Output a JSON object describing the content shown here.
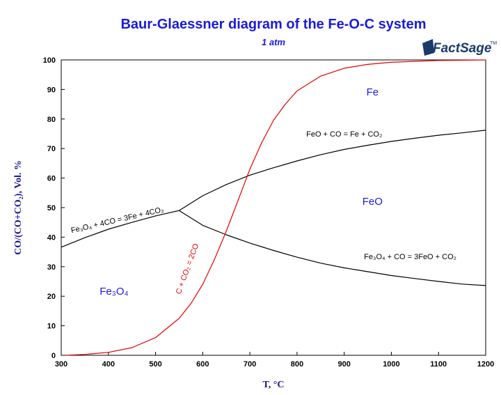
{
  "chart_data": {
    "type": "line",
    "title": "Baur-Glaessner diagram of the Fe-O-C system",
    "subtitle": "1 atm",
    "xlabel": "T, °C",
    "ylabel": "CO/(CO+CO₂), Vol. %",
    "xlim": [
      300,
      1200
    ],
    "ylim": [
      0,
      100
    ],
    "xticks": [
      300,
      400,
      500,
      600,
      700,
      800,
      900,
      1000,
      1100,
      1200
    ],
    "yticks": [
      0,
      10,
      20,
      30,
      40,
      50,
      60,
      70,
      80,
      90,
      100
    ],
    "grid": false,
    "series": [
      {
        "color": "#000000",
        "x": [
          300,
          350,
          400,
          450,
          500,
          550
        ],
        "y": [
          36.6,
          39.8,
          42.7,
          45.0,
          47.2,
          49.0
        ]
      },
      {
        "color": "#000000",
        "x": [
          550,
          600,
          650,
          700,
          750,
          800,
          850,
          900,
          950,
          1000,
          1050,
          1100,
          1150,
          1200
        ],
        "y": [
          49.0,
          54.0,
          57.8,
          61.0,
          63.5,
          65.8,
          67.9,
          69.7,
          71.1,
          72.4,
          73.5,
          74.5,
          75.3,
          76.2
        ]
      },
      {
        "color": "#000000",
        "x": [
          550,
          600,
          650,
          700,
          750,
          800,
          850,
          900,
          950,
          1000,
          1050,
          1100,
          1150,
          1200
        ],
        "y": [
          49.0,
          44.0,
          40.8,
          38.0,
          35.5,
          33.2,
          31.2,
          29.6,
          28.3,
          27.0,
          26.0,
          25.0,
          24.1,
          23.6
        ]
      },
      {
        "color": "#e00000",
        "x": [
          310,
          350,
          400,
          450,
          500,
          550,
          575,
          600,
          625,
          650,
          675,
          700,
          725,
          750,
          775,
          800,
          850,
          900,
          950,
          1000,
          1100,
          1200
        ],
        "y": [
          0,
          0.3,
          1.0,
          2.6,
          6.0,
          12.5,
          17.5,
          24.0,
          32.5,
          42.0,
          52.5,
          63.0,
          72.0,
          79.5,
          85.0,
          89.5,
          94.5,
          97.2,
          98.5,
          99.2,
          99.8,
          100
        ]
      }
    ],
    "annotations": [
      {
        "text": "Fe",
        "x": 960,
        "y": 88,
        "color": "#1a1adc"
      },
      {
        "text": "FeO",
        "x": 960,
        "y": 51,
        "color": "#1a1adc"
      },
      {
        "text": "Fe₃O₄",
        "x": 412,
        "y": 20.5,
        "color": "#1a1adc"
      },
      {
        "text": "FeO + CO = Fe + CO₂",
        "x": 900,
        "y": 74,
        "color": "#000000"
      },
      {
        "text": "Fe₃O₄ + CO = 3FeO + CO₂",
        "x": 1040,
        "y": 32.5,
        "color": "#000000"
      },
      {
        "text": "Fe₃O₄ + 4CO = 3Fe + 4CO₂",
        "x": 420,
        "y": 45,
        "color": "#000000"
      },
      {
        "text": "C + CO₂ = 2CO",
        "x": 572,
        "y": 29,
        "color": "#e00000"
      }
    ]
  },
  "logo": {
    "text": "FactSage",
    "tm": "TM"
  }
}
